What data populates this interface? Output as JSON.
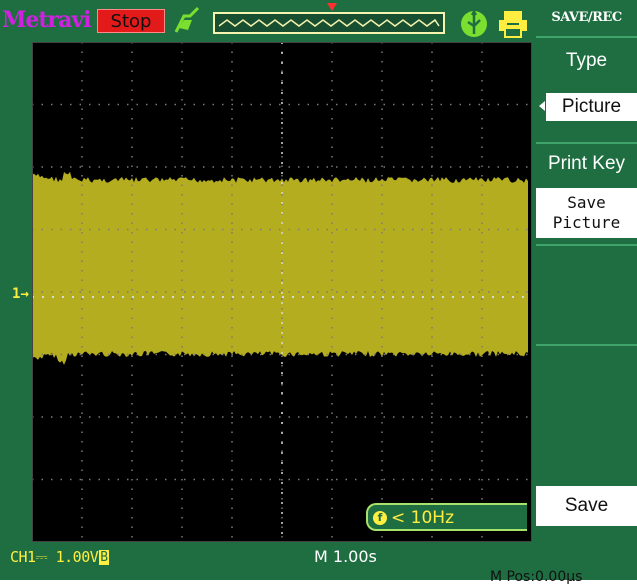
{
  "header": {
    "brand": "Metravi",
    "run_state": "Stop",
    "icons": [
      "trigger-icon",
      "usb-icon",
      "printer-icon"
    ]
  },
  "menu": {
    "title": "SAVE/REC",
    "type_label": "Type",
    "type_value": "Picture",
    "print_key_label": "Print Key",
    "save_picture_line1": "Save",
    "save_picture_line2": "Picture",
    "save_label": "Save"
  },
  "channel": {
    "marker": "1",
    "status": "CH1",
    "coupling_symbol": "⎓",
    "volts_div": "1.00V",
    "bw_limit": "B"
  },
  "timebase": "M 1.00s",
  "position": "M Pos:0.00µs",
  "frequency": {
    "icon": "f",
    "value": "< 10Hz"
  },
  "colors": {
    "background": "#1f6e42",
    "screen": "#000000",
    "trace": "#b4ad1f",
    "accent": "#ffee40",
    "stop": "#e21a1a"
  }
}
